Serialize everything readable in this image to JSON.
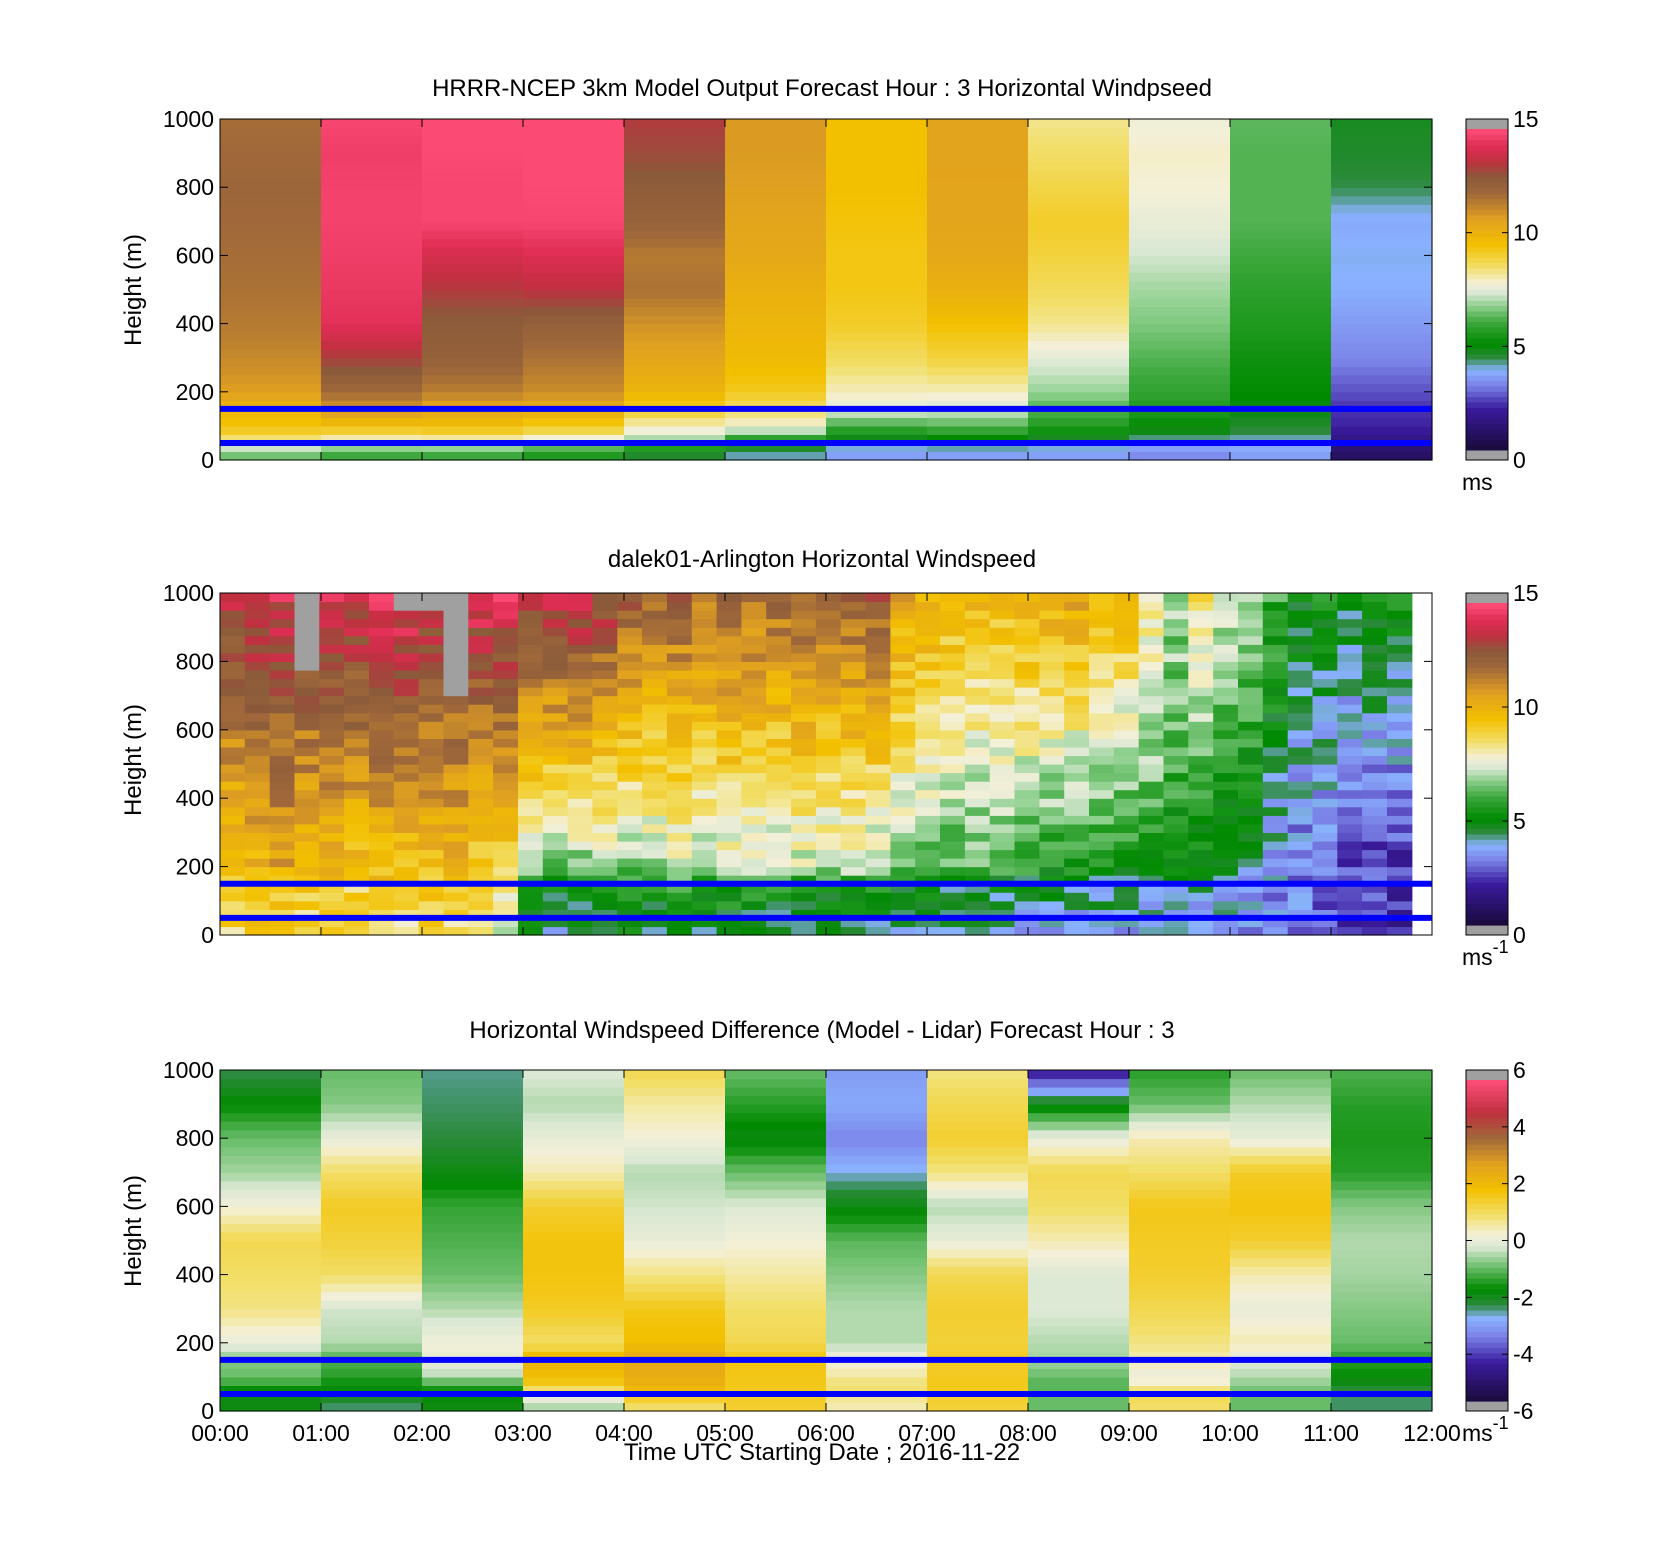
{
  "colormaps": {
    "speed": [
      [
        0,
        "#1a0a3a"
      ],
      [
        0.13,
        "#3a1b9e"
      ],
      [
        0.2,
        "#7a80e6"
      ],
      [
        0.25,
        "#8ab2ff"
      ],
      [
        0.29,
        "#2b8a3a"
      ],
      [
        0.33,
        "#008a00"
      ],
      [
        0.4,
        "#3da83d"
      ],
      [
        0.45,
        "#8fd08f"
      ],
      [
        0.49,
        "#dbe8d4"
      ],
      [
        0.52,
        "#f4f0d8"
      ],
      [
        0.57,
        "#f2df6a"
      ],
      [
        0.64,
        "#f3c000"
      ],
      [
        0.72,
        "#e0a020"
      ],
      [
        0.8,
        "#a0683a"
      ],
      [
        0.85,
        "#8a5a3a"
      ],
      [
        0.9,
        "#c03040"
      ],
      [
        0.95,
        "#e02e55"
      ],
      [
        1,
        "#ff4f7a"
      ]
    ],
    "diff": [
      [
        0,
        "#1a0a3a"
      ],
      [
        0.12,
        "#3a1b9e"
      ],
      [
        0.2,
        "#7a80e6"
      ],
      [
        0.26,
        "#8ab2ff"
      ],
      [
        0.3,
        "#2b8a3a"
      ],
      [
        0.35,
        "#008a00"
      ],
      [
        0.42,
        "#6dbf6d"
      ],
      [
        0.48,
        "#dbe8d4"
      ],
      [
        0.52,
        "#f4f0d8"
      ],
      [
        0.58,
        "#f2df6a"
      ],
      [
        0.66,
        "#f3c000"
      ],
      [
        0.74,
        "#e0a020"
      ],
      [
        0.82,
        "#a0683a"
      ],
      [
        0.9,
        "#c03040"
      ],
      [
        1,
        "#ff4f7a"
      ]
    ],
    "missing_color": "#a0a0a0",
    "boundary_line_color": "#0000ff"
  },
  "chart_data": [
    {
      "type": "heatmap",
      "title": "HRRR-NCEP 3km Model Output   Forecast Hour : 3 Horizontal Windpseed",
      "ylabel": "Height (m)",
      "xlabel": "",
      "ylim": [
        0,
        1000
      ],
      "yticks": [
        "0",
        "200",
        "400",
        "600",
        "800",
        "1000"
      ],
      "show_xtick_labels": false,
      "colorbar": {
        "ticks": [
          "0",
          "5",
          "10",
          "15"
        ],
        "range": [
          0,
          15
        ],
        "unit": "ms",
        "unit_exp": "",
        "cmap": "speed"
      },
      "boundary_lines_m": [
        50,
        150
      ],
      "x_range_hours": [
        0,
        12
      ],
      "heights_m": [
        25,
        50,
        75,
        100,
        150,
        200,
        300,
        400,
        500,
        600,
        700,
        800,
        900,
        1000
      ],
      "columns": [
        {
          "t": "00:00",
          "speed": [
            6.5,
            8,
            9,
            9.5,
            10,
            10.8,
            11.3,
            11.6,
            11.8,
            11.9,
            12,
            12.1,
            12,
            11.9
          ]
        },
        {
          "t": "01:00",
          "speed": [
            6,
            7.5,
            8.7,
            9.6,
            11,
            12,
            13.2,
            14.3,
            14.5,
            14.6,
            14.7,
            14.7,
            14.6,
            14.8
          ]
        },
        {
          "t": "02:00",
          "speed": [
            6,
            7.6,
            8.8,
            9.7,
            10.5,
            11.5,
            12.4,
            12.6,
            13.3,
            14,
            14.8,
            14.8,
            14.9,
            14.9
          ]
        },
        {
          "t": "03:00",
          "speed": [
            5.5,
            7,
            8.6,
            9.2,
            10.4,
            11.2,
            11.8,
            12.4,
            13.5,
            14.2,
            14.8,
            14.9,
            14.9,
            14.9
          ]
        },
        {
          "t": "04:00",
          "speed": [
            4.5,
            6.5,
            7.5,
            8,
            9.2,
            10,
            10.6,
            11.1,
            11.8,
            11.6,
            12.3,
            12.6,
            13,
            13.3
          ]
        },
        {
          "t": "05:00",
          "speed": [
            4,
            5,
            6.5,
            7.8,
            8.6,
            9.3,
            9.8,
            10,
            10.2,
            10.5,
            10.6,
            10.8,
            10.9,
            10.9
          ]
        },
        {
          "t": "06:00",
          "speed": [
            3.5,
            4.2,
            5.2,
            6,
            7.5,
            8,
            8.7,
            9.2,
            9.4,
            9.4,
            9.5,
            9.6,
            9.6,
            9.6
          ]
        },
        {
          "t": "07:00",
          "speed": [
            3.5,
            4.5,
            5.5,
            6.2,
            7.3,
            8,
            9,
            9.6,
            10.2,
            10.5,
            10.6,
            10.6,
            10.7,
            10.7
          ]
        },
        {
          "t": "08:00",
          "speed": [
            3.5,
            4.2,
            5,
            5.5,
            6.2,
            6.8,
            7.5,
            8.3,
            8.7,
            9,
            9.2,
            8.9,
            8.6,
            8.3
          ]
        },
        {
          "t": "09:00",
          "speed": [
            3.2,
            3.8,
            4.5,
            5,
            5.5,
            5.8,
            6.2,
            6.6,
            6.9,
            7.3,
            7.6,
            7.8,
            7.9,
            7.7
          ]
        },
        {
          "t": "10:00",
          "speed": [
            3.5,
            3.8,
            4.2,
            4.5,
            4.8,
            5,
            5.2,
            5.5,
            5.7,
            6,
            6.2,
            6.2,
            6.2,
            6.3
          ]
        },
        {
          "t": "11:00",
          "speed": [
            0.8,
            1.3,
            1.7,
            2,
            2.2,
            2.5,
            3.1,
            3.4,
            3.7,
            3.8,
            3.6,
            4.3,
            4.5,
            4.6
          ]
        }
      ]
    },
    {
      "type": "heatmap",
      "title": "dalek01-Arlington  Horizontal Windspeed",
      "ylabel": "Height (m)",
      "xlabel": "",
      "ylim": [
        0,
        1000
      ],
      "yticks": [
        "0",
        "200",
        "400",
        "600",
        "800",
        "1000"
      ],
      "show_xtick_labels": false,
      "colorbar": {
        "ticks": [
          "0",
          "5",
          "10",
          "15"
        ],
        "range": [
          0,
          15
        ],
        "unit": "ms",
        "unit_exp": "-1",
        "cmap": "speed"
      },
      "boundary_lines_m": [
        50,
        150
      ],
      "x_range_hours": [
        0,
        11.8
      ],
      "n_time_bins": 48,
      "n_height_bins": 40,
      "profile_speed_at_200m": [
        9.5,
        10,
        10.5,
        10,
        9.8,
        9.6,
        9.9,
        9.5,
        9.8,
        10,
        9.2,
        8.8,
        7,
        6.5,
        6.6,
        6.8,
        6.8,
        7,
        7.2,
        7.1,
        7.3,
        7.4,
        7,
        7.3,
        7.2,
        7.4,
        7,
        6.8,
        6.4,
        6,
        6.2,
        6.3,
        6,
        5.6,
        5.4,
        5.5,
        5.3,
        5.3,
        5,
        4.8,
        4.4,
        4.2,
        3.5,
        3,
        2.8,
        2.6,
        2.4,
        2.2
      ],
      "profile_speed_at_1000m": [
        13.5,
        13.8,
        14,
        13.6,
        14.2,
        13.9,
        14.1,
        14.5,
        13.8,
        13.6,
        14.2,
        14.4,
        13.8,
        14,
        14.3,
        13.6,
        12.5,
        12.2,
        12.4,
        12,
        12.3,
        12.1,
        12.2,
        12.5,
        12,
        12.2,
        12.6,
        10.6,
        10.4,
        10,
        9.9,
        9.6,
        10.1,
        10.3,
        10.5,
        10.1,
        9.8,
        8.6,
        7.2,
        8.4,
        7.5,
        7,
        6,
        5,
        5.2,
        4.5,
        5,
        5.2
      ],
      "low_level_speed": [
        8.8,
        9.2,
        9,
        8.6,
        9,
        8.5,
        8.9,
        8.4,
        8.8,
        8.4,
        8.2,
        7.6,
        4.5,
        4,
        4.2,
        4.5,
        4.6,
        4.4,
        4.8,
        4.5,
        4.5,
        4.3,
        4.3,
        4.2,
        4.1,
        4.2,
        4.3,
        4,
        3.9,
        3.8,
        3.6,
        3.5,
        3.5,
        3.7,
        3.4,
        3.5,
        3.4,
        3.4,
        3.5,
        3.6,
        3.4,
        3.2,
        3.1,
        3,
        2.8,
        2.4,
        2.2,
        2
      ],
      "missing_regions": [
        {
          "t_start": "00:45",
          "t_end": "01:00",
          "h_min_m": 780,
          "h_max_m": 1000
        },
        {
          "t_start": "02:15",
          "t_end": "02:30",
          "h_min_m": 690,
          "h_max_m": 1000
        },
        {
          "t_start": "01:50",
          "t_end": "02:15",
          "h_min_m": 960,
          "h_max_m": 1000
        }
      ]
    },
    {
      "type": "heatmap",
      "title": "Horizontal Windspeed Difference (Model - Lidar) Forecast Hour : 3",
      "ylabel": "Height (m)",
      "xlabel": "Time UTC  Starting Date ; 2016-11-22",
      "ylim": [
        0,
        1000
      ],
      "yticks": [
        "0",
        "200",
        "400",
        "600",
        "800",
        "1000"
      ],
      "xticks": [
        "00:00",
        "01:00",
        "02:00",
        "03:00",
        "04:00",
        "05:00",
        "06:00",
        "07:00",
        "08:00",
        "09:00",
        "10:00",
        "11:00",
        "12:00"
      ],
      "show_xtick_labels": true,
      "colorbar": {
        "ticks": [
          "-6",
          "-4",
          "-2",
          "0",
          "2",
          "4",
          "6"
        ],
        "range": [
          -6,
          6
        ],
        "unit": "ms",
        "unit_exp": "-1",
        "cmap": "diff"
      },
      "boundary_lines_m": [
        50,
        150
      ],
      "x_range_hours": [
        0,
        12
      ],
      "heights_m": [
        25,
        50,
        75,
        100,
        150,
        200,
        300,
        400,
        500,
        600,
        700,
        800,
        900,
        1000
      ],
      "columns": [
        {
          "t": "00:00",
          "diff": [
            -2,
            -2,
            -1.5,
            -1,
            -0.8,
            0,
            0.8,
            1,
            1.2,
            0.2,
            -0.6,
            -1,
            -1.8,
            -2.5
          ]
        },
        {
          "t": "01:00",
          "diff": [
            -2.5,
            -2,
            -1.8,
            -1.5,
            -1.2,
            -0.5,
            -0.3,
            1,
            1.4,
            1.6,
            1,
            0,
            -0.8,
            -1
          ]
        },
        {
          "t": "02:00",
          "diff": [
            -2,
            -1.8,
            -1.5,
            -0.5,
            0,
            0.2,
            -0.5,
            -1,
            -1.2,
            -1.4,
            -2,
            -2.4,
            -2.5,
            -2.6
          ]
        },
        {
          "t": "03:00",
          "diff": [
            -0.5,
            0.5,
            1.5,
            2,
            2.3,
            1,
            1.6,
            1.8,
            1.8,
            1.5,
            0.5,
            0,
            -0.5,
            -0.2
          ]
        },
        {
          "t": "04:00",
          "diff": [
            1,
            2,
            2.3,
            2.5,
            2.6,
            2,
            1.7,
            0.8,
            0,
            -0.3,
            -0.5,
            0.2,
            0.6,
            1.2
          ]
        },
        {
          "t": "05:00",
          "diff": [
            1.5,
            1.6,
            1.7,
            1.7,
            1.8,
            1.2,
            1,
            0.6,
            0.2,
            -0.2,
            -1,
            -2,
            -1.5,
            -1
          ]
        },
        {
          "t": "06:00",
          "diff": [
            0.5,
            0.8,
            1,
            0.6,
            0.2,
            -0.5,
            -0.5,
            -0.8,
            -1.1,
            -2,
            -2.8,
            -3.5,
            -3,
            -3.2
          ]
        },
        {
          "t": "07:00",
          "diff": [
            1.4,
            1.6,
            1.7,
            1.6,
            1.6,
            1.4,
            1.5,
            1.2,
            0,
            -0.5,
            0.8,
            1.5,
            1.2,
            0.8
          ]
        },
        {
          "t": "08:00",
          "diff": [
            -1,
            -1,
            -1.2,
            -1,
            -0.6,
            -0.5,
            -0.2,
            -0.2,
            0.5,
            1,
            1.2,
            0,
            -2,
            -4.8
          ]
        },
        {
          "t": "09:00",
          "diff": [
            1,
            1.2,
            0.5,
            0,
            0.5,
            0.8,
            1.2,
            1.5,
            1.6,
            1.7,
            1,
            0.5,
            -1,
            -1.5
          ]
        },
        {
          "t": "10:00",
          "diff": [
            -1,
            -1,
            -0.8,
            -0.5,
            -0.2,
            0.5,
            0,
            0.5,
            1.5,
            1.8,
            1.6,
            0,
            -0.5,
            -1
          ]
        },
        {
          "t": "11:00",
          "diff": [
            -2.5,
            -2.5,
            -2.2,
            -1.8,
            -1.5,
            -1,
            -0.8,
            -0.6,
            -0.5,
            -0.8,
            -1.5,
            -1.6,
            -1.5,
            -1.2
          ]
        }
      ]
    }
  ]
}
